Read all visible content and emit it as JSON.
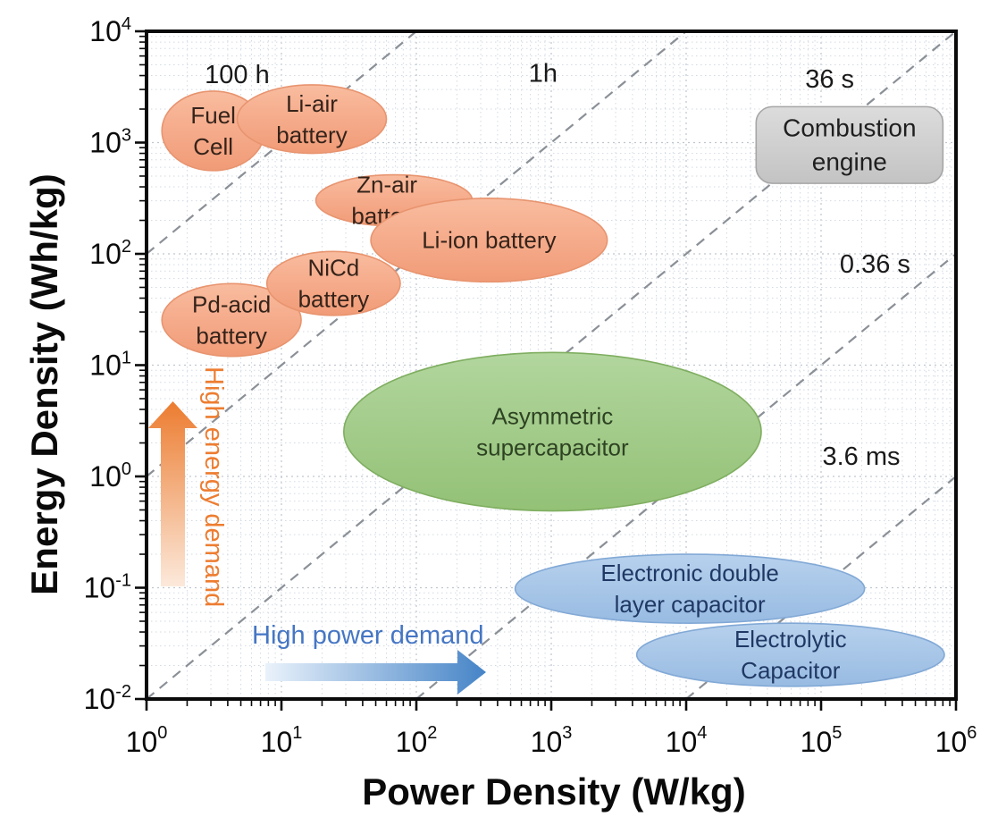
{
  "figure": {
    "kind": "Ragone plot of energy storage technologies",
    "background": "#ffffff"
  },
  "chart_data": {
    "type": "scatter",
    "subtype": "log-log region (Ragone) chart",
    "title": "",
    "xlabel": "Power Density (W/kg)",
    "ylabel": "Energy Density (Wh/kg)",
    "xscale": "log",
    "yscale": "log",
    "xlim": [
      1,
      1000000
    ],
    "ylim": [
      0.01,
      10000
    ],
    "x_tick_exponents": [
      0,
      1,
      2,
      3,
      4,
      5,
      6
    ],
    "y_tick_exponents": [
      4,
      3,
      2,
      1,
      0,
      -1,
      -2
    ],
    "x_tick_labels": [
      "10⁰",
      "10¹",
      "10²",
      "10³",
      "10⁴",
      "10⁵",
      "10⁶"
    ],
    "y_tick_labels": [
      "10⁴",
      "10³",
      "10²",
      "10¹",
      "10⁰",
      "10⁻¹",
      "10⁻²"
    ],
    "grid": {
      "major": true,
      "minor": true,
      "style": "dotted"
    },
    "time_lines": [
      {
        "label": "100 h",
        "hours": 100,
        "label_fx": 0.112,
        "label_fy": 0.064
      },
      {
        "label": "1h",
        "hours": 1,
        "label_fx": 0.49,
        "label_fy": 0.062
      },
      {
        "label": "36 s",
        "hours": 0.01,
        "label_fx": 0.844,
        "label_fy": 0.071
      },
      {
        "label": "0.36 s",
        "hours": 0.0001,
        "label_fx": 0.9,
        "label_fy": 0.348
      },
      {
        "label": "3.6 ms",
        "hours": 1e-06,
        "label_fx": 0.883,
        "label_fy": 0.636
      }
    ],
    "regions": [
      {
        "id": "fuel-cell",
        "label": [
          "Fuel",
          "Cell"
        ],
        "shape": "ellipse",
        "palette": "orange",
        "power_W_per_kg": [
          1.3,
          7.5
        ],
        "energy_Wh_per_kg": [
          560,
          2900
        ]
      },
      {
        "id": "li-air-battery",
        "label": [
          "Li-air",
          "battery"
        ],
        "shape": "ellipse",
        "palette": "orange",
        "power_W_per_kg": [
          4.7,
          60
        ],
        "energy_Wh_per_kg": [
          800,
          3300
        ]
      },
      {
        "id": "pd-acid-battery",
        "label": [
          "Pd-acid",
          "battery"
        ],
        "shape": "ellipse",
        "palette": "orange",
        "power_W_per_kg": [
          1.3,
          14
        ],
        "energy_Wh_per_kg": [
          12,
          54
        ]
      },
      {
        "id": "nicd-battery",
        "label": [
          "NiCd",
          "battery"
        ],
        "shape": "ellipse",
        "palette": "orange",
        "power_W_per_kg": [
          7.8,
          76
        ],
        "energy_Wh_per_kg": [
          28,
          105
        ]
      },
      {
        "id": "zn-air-battery",
        "label": [
          "Zn-air",
          "battery"
        ],
        "shape": "ellipse",
        "palette": "orange",
        "power_W_per_kg": [
          18,
          260
        ],
        "energy_Wh_per_kg": [
          178,
          513
        ],
        "label_dx": -8
      },
      {
        "id": "li-ion-battery",
        "label": [
          "Li-ion battery"
        ],
        "shape": "ellipse",
        "palette": "orange",
        "power_W_per_kg": [
          46,
          2600
        ],
        "energy_Wh_per_kg": [
          56,
          316
        ]
      },
      {
        "id": "asymmetric-supercapacitor",
        "label": [
          "Asymmetric",
          "supercapacitor"
        ],
        "shape": "ellipse",
        "palette": "green",
        "power_W_per_kg": [
          29,
          36000
        ],
        "energy_Wh_per_kg": [
          0.49,
          13
        ]
      },
      {
        "id": "electronic-double-layer-capacitor",
        "label": [
          "Electronic double",
          "layer capacitor"
        ],
        "shape": "ellipse",
        "palette": "blue",
        "power_W_per_kg": [
          540,
          210000
        ],
        "energy_Wh_per_kg": [
          0.048,
          0.2
        ]
      },
      {
        "id": "electrolytic-capacitor",
        "label": [
          "Electrolytic",
          "Capacitor"
        ],
        "shape": "ellipse",
        "palette": "blue",
        "power_W_per_kg": [
          4300,
          820000
        ],
        "energy_Wh_per_kg": [
          0.013,
          0.048
        ]
      },
      {
        "id": "combustion-engine",
        "label": [
          "Combustion",
          "engine"
        ],
        "shape": "rounded-rect",
        "palette": "gray",
        "power_W_per_kg": [
          33000,
          800000
        ],
        "energy_Wh_per_kg": [
          430,
          2100
        ]
      }
    ],
    "palettes": {
      "orange": {
        "stroke": "#E8946F",
        "text": "#35231A"
      },
      "green": {
        "stroke": "#7FAE60",
        "text": "#2E4323"
      },
      "blue": {
        "stroke": "#82A9D6",
        "text": "#1F3864"
      },
      "gray": {
        "stroke": "#A6A6A6",
        "text": "#1F1F1F"
      }
    },
    "annotations": {
      "energy_arrow": {
        "label": "High energy demand",
        "color": "#ED7D31",
        "direction": "up"
      },
      "power_arrow": {
        "label": "High power demand",
        "color": "#4576C4",
        "direction": "right"
      }
    }
  }
}
